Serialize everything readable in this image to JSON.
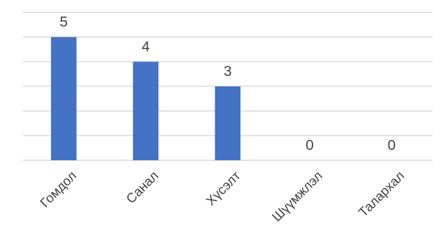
{
  "chart_data": {
    "type": "bar",
    "title": "",
    "xlabel": "",
    "ylabel": "",
    "categories": [
      "Гомдол",
      "Санал",
      "Хүсэлт",
      "Шүүмжлэл",
      "Талархал"
    ],
    "values": [
      5,
      4,
      3,
      0,
      0
    ],
    "ylim": [
      0,
      6
    ],
    "grid": true,
    "legend": "none",
    "data_labels": true,
    "colors": {
      "bar": "#4472C4",
      "grid": "#D9D9D9",
      "text": "#404040"
    }
  }
}
